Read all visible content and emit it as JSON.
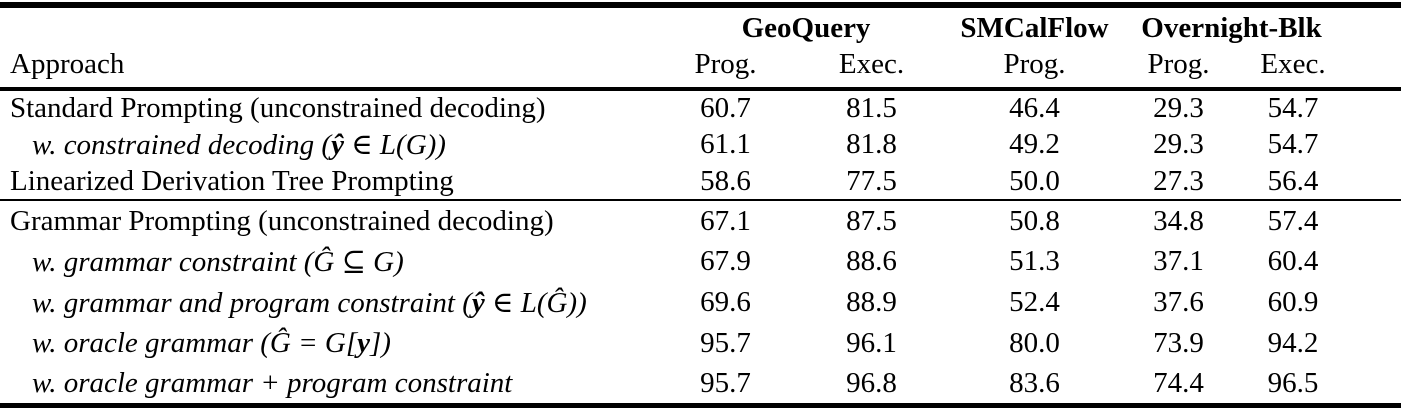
{
  "figure": {
    "kind": "paper-results-table"
  },
  "table": {
    "approach_header": "Approach",
    "column_groups": [
      {
        "label": "GeoQuery",
        "span": 2
      },
      {
        "label": "SMCalFlow",
        "span": 1
      },
      {
        "label": "Overnight-Blk",
        "span": 2
      }
    ],
    "sub_headers": [
      "Prog.",
      "Exec.",
      "Prog.",
      "Prog.",
      "Exec."
    ],
    "groups": [
      {
        "rows": [
          {
            "indent": false,
            "segments": [
              {
                "t": "Standard Prompting (unconstrained decoding)",
                "s": "plain"
              }
            ],
            "values": [
              "60.7",
              "81.5",
              "46.4",
              "29.3",
              "54.7"
            ]
          },
          {
            "indent": true,
            "segments": [
              {
                "t": "w. constrained decoding (",
                "s": "it"
              },
              {
                "t": "ŷ",
                "s": "mathbf"
              },
              {
                "t": " ∈ L(G))",
                "s": "it"
              }
            ],
            "values": [
              "61.1",
              "81.8",
              "49.2",
              "29.3",
              "54.7"
            ]
          },
          {
            "indent": false,
            "segments": [
              {
                "t": "Linearized Derivation Tree Prompting",
                "s": "plain"
              }
            ],
            "values": [
              "58.6",
              "77.5",
              "50.0",
              "27.3",
              "56.4"
            ]
          }
        ]
      },
      {
        "rows": [
          {
            "indent": false,
            "segments": [
              {
                "t": "Grammar Prompting (unconstrained decoding)",
                "s": "plain"
              }
            ],
            "values": [
              "67.1",
              "87.5",
              "50.8",
              "34.8",
              "57.4"
            ]
          },
          {
            "indent": true,
            "segments": [
              {
                "t": "w. grammar constraint (Ĝ ⊆ G)",
                "s": "it"
              }
            ],
            "values": [
              "67.9",
              "88.6",
              "51.3",
              "37.1",
              "60.4"
            ]
          },
          {
            "indent": true,
            "segments": [
              {
                "t": "w. grammar and program constraint (",
                "s": "it"
              },
              {
                "t": "ŷ",
                "s": "mathbf"
              },
              {
                "t": " ∈ L(Ĝ))",
                "s": "it"
              }
            ],
            "values": [
              "69.6",
              "88.9",
              "52.4",
              "37.6",
              "60.9"
            ]
          },
          {
            "indent": true,
            "segments": [
              {
                "t": "w. oracle grammar (Ĝ = G[",
                "s": "it"
              },
              {
                "t": "y",
                "s": "mathbf"
              },
              {
                "t": "])",
                "s": "it"
              }
            ],
            "values": [
              "95.7",
              "96.1",
              "80.0",
              "73.9",
              "94.2"
            ]
          },
          {
            "indent": true,
            "segments": [
              {
                "t": "w. oracle grammar + program constraint",
                "s": "it"
              }
            ],
            "values": [
              "95.7",
              "96.8",
              "83.6",
              "74.4",
              "96.5"
            ]
          }
        ]
      }
    ]
  },
  "colors": {
    "text": "#000000",
    "background": "#ffffff",
    "rule": "#000000"
  }
}
